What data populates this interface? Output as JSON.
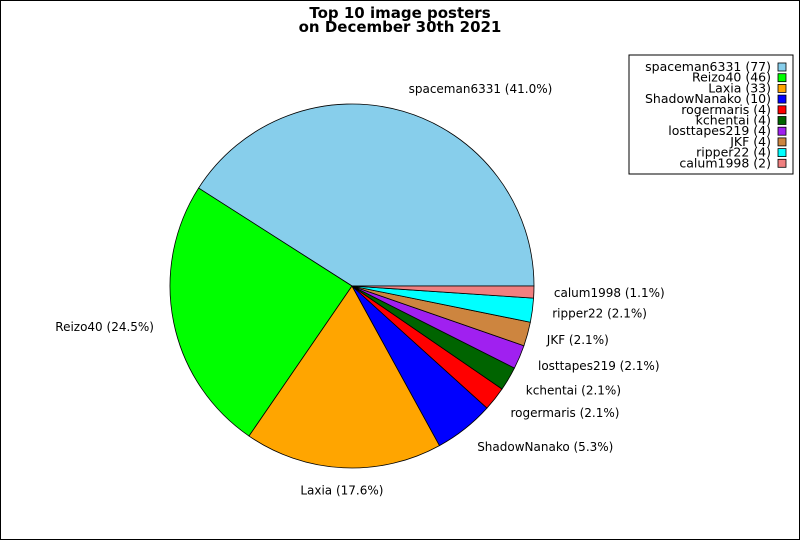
{
  "chart_data": {
    "type": "pie",
    "title": [
      "Top 10 image posters",
      "on December 30th 2021"
    ],
    "slices": [
      {
        "name": "spaceman6331",
        "value": 77,
        "percent_label": "41.0%",
        "color": "#87CEEB"
      },
      {
        "name": "Reizo40",
        "value": 46,
        "percent_label": "24.5%",
        "color": "#00FF00"
      },
      {
        "name": "Laxia",
        "value": 33,
        "percent_label": "17.6%",
        "color": "#FFA500"
      },
      {
        "name": "ShadowNanako",
        "value": 10,
        "percent_label": "5.3%",
        "color": "#0000FF"
      },
      {
        "name": "rogermaris",
        "value": 4,
        "percent_label": "2.1%",
        "color": "#FF0000"
      },
      {
        "name": "kchentai",
        "value": 4,
        "percent_label": "2.1%",
        "color": "#006400"
      },
      {
        "name": "losttapes219",
        "value": 4,
        "percent_label": "2.1%",
        "color": "#A020F0"
      },
      {
        "name": "JKF",
        "value": 4,
        "percent_label": "2.1%",
        "color": "#CD853F"
      },
      {
        "name": "ripper22",
        "value": 4,
        "percent_label": "2.1%",
        "color": "#00FFFF"
      },
      {
        "name": "calum1998",
        "value": 2,
        "percent_label": "1.1%",
        "color": "#F08080"
      }
    ],
    "start_angle_deg": 0,
    "direction": "counterclockwise",
    "legend_position": "top-right"
  }
}
